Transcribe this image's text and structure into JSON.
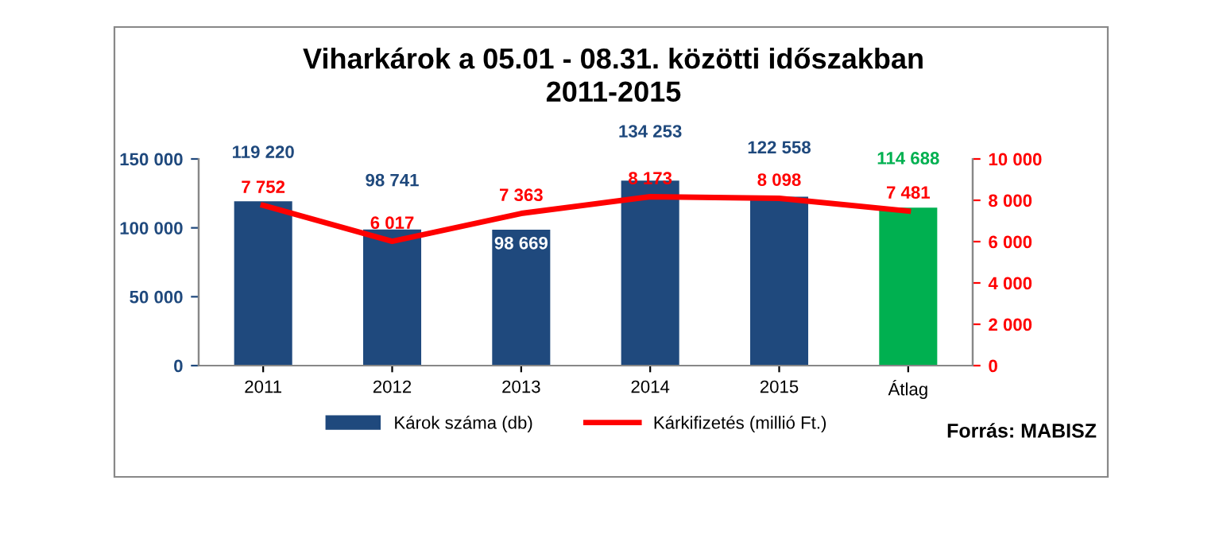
{
  "chart_data": {
    "type": "bar",
    "title": "Viharkárok a 05.01 - 08.31. közötti időszakban\n2011-2015",
    "categories": [
      "2011",
      "2012",
      "2013",
      "2014",
      "2015",
      "Átlag"
    ],
    "series": [
      {
        "name": "Károk száma (db)",
        "color": "#1f497d",
        "colors": [
          "#1f497d",
          "#1f497d",
          "#1f497d",
          "#1f497d",
          "#1f497d",
          "#00b050"
        ],
        "values": [
          119220,
          98741,
          98669,
          134253,
          122558,
          114688
        ]
      },
      {
        "name": "Kárkifizetés (millió Ft.)",
        "type": "line",
        "axis": "y2",
        "color": "#ff0000",
        "values": [
          7752,
          6017,
          7363,
          8173,
          8098,
          7481
        ]
      }
    ],
    "ylim": [
      0,
      150000
    ],
    "yticks": [
      0,
      {
        "value": 50000,
        "label": "50 000"
      },
      {
        "value": 100000,
        "label": "100 000"
      },
      {
        "value": 150000,
        "label": "150 000"
      }
    ],
    "y2lim": [
      0,
      10000
    ],
    "y2ticks": [
      0,
      {
        "value": 2000,
        "label": "2 000"
      },
      {
        "value": 4000,
        "label": "4 000"
      },
      {
        "value": 6000,
        "label": "6 000"
      },
      {
        "value": 8000,
        "label": "8 000"
      },
      {
        "value": 10000,
        "label": "10 000"
      }
    ],
    "data_labels": true,
    "legend": "bottom",
    "grid": false,
    "marker": "none",
    "line_style": "solid",
    "annotations": [
      "Forrás: MABISZ"
    ]
  }
}
